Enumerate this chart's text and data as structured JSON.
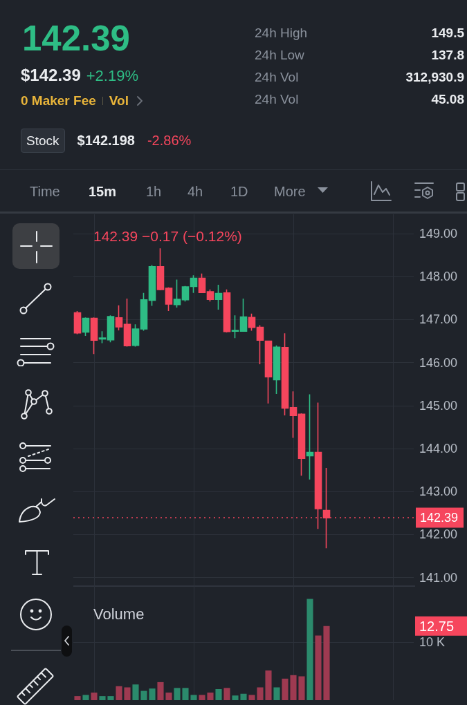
{
  "chart_data": [
    {
      "type": "other",
      "annotations": [
        "142.39",
        "$142.39",
        "+2.19%",
        "0 Maker Fee",
        "Vol",
        "24h High",
        "149.5",
        "24h Low",
        "137.8",
        "24h Vol",
        "312,930.9",
        "24h Vol",
        "45.08",
        "Stock",
        "$142.198",
        "-2.86%",
        "Time",
        "15m",
        "1h",
        "4h",
        "1D",
        "More"
      ]
    },
    {
      "type": "candlestick",
      "subtitle": "142.39 −0.17 (−0.12%)",
      "categories": [
        null,
        null,
        null,
        null,
        null,
        null,
        null,
        null,
        null,
        null,
        null,
        null,
        null,
        null,
        null,
        null,
        null,
        null,
        null,
        null,
        null,
        null,
        null,
        null,
        null,
        null,
        null,
        null,
        null,
        null,
        null,
        null,
        null,
        null,
        null,
        null,
        null,
        null,
        null,
        null,
        null
      ],
      "ohlc": [
        [
          147.16,
          147.2,
          146.66,
          146.69
        ],
        [
          146.71,
          147.05,
          146.62,
          147.03
        ],
        [
          147.03,
          147.05,
          146.2,
          146.52
        ],
        [
          146.55,
          146.73,
          146.45,
          146.57
        ],
        [
          146.53,
          147.1,
          146.47,
          147.07
        ],
        [
          147.04,
          147.33,
          146.75,
          146.83
        ],
        [
          146.89,
          147.49,
          146.37,
          146.39
        ],
        [
          146.4,
          146.89,
          146.37,
          146.78
        ],
        [
          146.78,
          147.62,
          146.74,
          147.46
        ],
        [
          147.45,
          148.27,
          147.32,
          148.23
        ],
        [
          148.23,
          148.66,
          147.68,
          147.7
        ],
        [
          147.73,
          147.75,
          147.2,
          147.36
        ],
        [
          147.35,
          147.93,
          147.28,
          147.47
        ],
        [
          147.46,
          147.78,
          147.42,
          147.76
        ],
        [
          147.77,
          148.03,
          147.62,
          147.96
        ],
        [
          147.96,
          148.07,
          147.62,
          147.63
        ],
        [
          147.65,
          147.7,
          147.42,
          147.47
        ],
        [
          147.47,
          147.81,
          147.23,
          147.61
        ],
        [
          147.62,
          147.7,
          146.7,
          146.72
        ],
        [
          146.73,
          147.1,
          146.57,
          146.75
        ],
        [
          146.73,
          147.49,
          146.72,
          147.06
        ],
        [
          147.05,
          147.14,
          146.74,
          146.82
        ],
        [
          146.82,
          146.87,
          145.96,
          146.52
        ],
        [
          146.5,
          146.51,
          145.05,
          145.67
        ],
        [
          145.6,
          146.4,
          145.27,
          146.36
        ],
        [
          146.35,
          146.68,
          144.77,
          144.94
        ],
        [
          144.95,
          145.33,
          144.25,
          144.77
        ],
        [
          144.8,
          144.82,
          143.37,
          143.77
        ],
        [
          143.83,
          145.26,
          143.28,
          143.91
        ],
        [
          143.91,
          145.07,
          142.13,
          142.6
        ],
        [
          142.56,
          143.55,
          141.68,
          142.39
        ],
        null,
        null,
        null,
        null,
        null,
        null,
        null,
        null,
        null,
        null
      ],
      "colors": [
        "#f6465d",
        "#2ebd85",
        "#f6465d",
        "#2ebd85",
        "#2ebd85",
        "#f6465d",
        "#f6465d",
        "#2ebd85",
        "#2ebd85",
        "#2ebd85",
        "#f6465d",
        "#f6465d",
        "#2ebd85",
        "#2ebd85",
        "#2ebd85",
        "#f6465d",
        "#f6465d",
        "#2ebd85",
        "#f6465d",
        "#2ebd85",
        "#2ebd85",
        "#f6465d",
        "#f6465d",
        "#f6465d",
        "#2ebd85",
        "#f6465d",
        "#f6465d",
        "#f6465d",
        "#2ebd85",
        "#f6465d",
        "#f6465d",
        null,
        null,
        null,
        null,
        null,
        null,
        null,
        null,
        null,
        null
      ],
      "ylim": [
        140.8,
        149.45
      ],
      "yticks": [
        {
          "value": 141,
          "label": "141.00"
        },
        {
          "value": 142,
          "label": "142.00"
        },
        {
          "value": 143,
          "label": "143.00"
        },
        {
          "value": 144,
          "label": "144.00"
        },
        {
          "value": 145,
          "label": "145.00"
        },
        {
          "value": 146,
          "label": "146.00"
        },
        {
          "value": 147,
          "label": "147.00"
        },
        {
          "value": 148,
          "label": "148.00"
        },
        {
          "value": 149,
          "label": "149.00"
        }
      ],
      "grid": true,
      "tick_labels": "y",
      "ref_lines": [
        {
          "axis": "y",
          "value": 142.39,
          "label": "142.39",
          "color": "#f6465d",
          "line_style": "dotted"
        }
      ]
    },
    {
      "type": "bar",
      "title": "Volume",
      "categories": [
        null,
        null,
        null,
        null,
        null,
        null,
        null,
        null,
        null,
        null,
        null,
        null,
        null,
        null,
        null,
        null,
        null,
        null,
        null,
        null,
        null,
        null,
        null,
        null,
        null,
        null,
        null,
        null,
        null,
        null,
        null,
        null,
        null,
        null,
        null,
        null,
        null,
        null,
        null,
        null,
        null
      ],
      "values": [
        0.7,
        0.9,
        1.3,
        0.7,
        0.7,
        2.4,
        2.2,
        2.7,
        1.6,
        2.0,
        3.1,
        1.3,
        2.1,
        2.1,
        0.9,
        0.9,
        1.3,
        1.9,
        2.1,
        0.8,
        1.1,
        0.9,
        2.2,
        5.1,
        2.2,
        3.7,
        4.3,
        4.1,
        17.4,
        11.1,
        12.75,
        null,
        null,
        null,
        null,
        null,
        null,
        null,
        null,
        null,
        null
      ],
      "colors": [
        "#9e3a51",
        "#2b8a6c",
        "#9e3a51",
        "#2b8a6c",
        "#2b8a6c",
        "#9e3a51",
        "#9e3a51",
        "#2b8a6c",
        "#2b8a6c",
        "#2b8a6c",
        "#9e3a51",
        "#9e3a51",
        "#2b8a6c",
        "#2b8a6c",
        "#2b8a6c",
        "#9e3a51",
        "#9e3a51",
        "#2b8a6c",
        "#9e3a51",
        "#2b8a6c",
        "#2b8a6c",
        "#9e3a51",
        "#9e3a51",
        "#9e3a51",
        "#2b8a6c",
        "#9e3a51",
        "#9e3a51",
        "#9e3a51",
        "#2b8a6c",
        "#9e3a51",
        "#9e3a51",
        null,
        null,
        null,
        null,
        null,
        null,
        null,
        null,
        null,
        null
      ],
      "ylim": [
        0,
        19.6
      ],
      "yticks": [
        {
          "value": 10,
          "label": "10 K"
        }
      ],
      "grid": true,
      "tick_labels": "y",
      "annotations": [
        "12.75"
      ]
    }
  ]
}
